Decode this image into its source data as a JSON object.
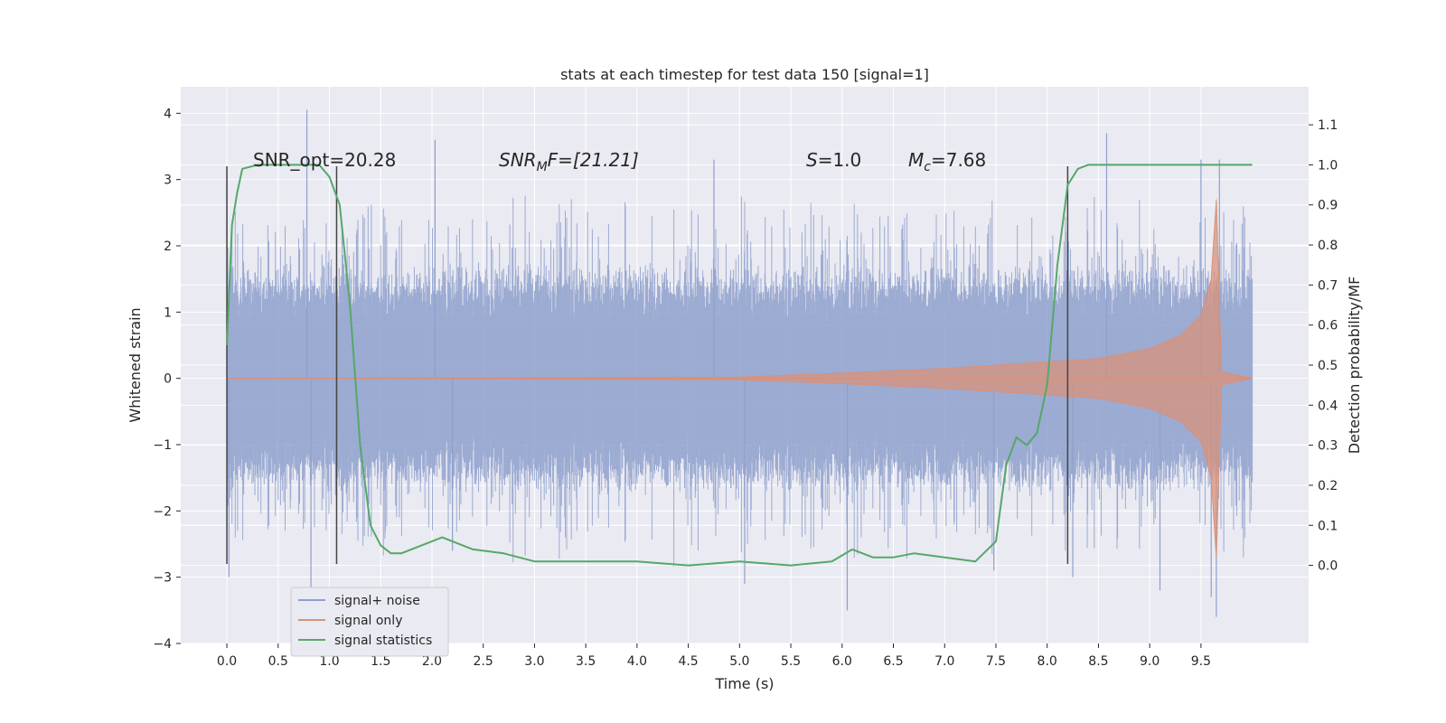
{
  "chart_data": {
    "type": "line",
    "title": "stats at each timestep for test data 150 [signal=1]",
    "xlabel": "Time (s)",
    "ylabel_left": "Whitened strain",
    "ylabel_right": "Detection probability/MF",
    "xlim": [
      -0.45,
      10.55
    ],
    "ylim_left": [
      -4,
      4.4
    ],
    "ylim_right": [
      -0.195,
      1.195
    ],
    "x_ticks": [
      "0.0",
      "0.5",
      "1.0",
      "1.5",
      "2.0",
      "2.5",
      "3.0",
      "3.5",
      "4.0",
      "4.5",
      "5.0",
      "5.5",
      "6.0",
      "6.5",
      "7.0",
      "7.5",
      "8.0",
      "8.5",
      "9.0",
      "9.5"
    ],
    "y_left_ticks": [
      "4",
      "3",
      "2",
      "1",
      "0",
      "−1",
      "−2",
      "−3",
      "−4"
    ],
    "y_right_ticks": [
      "1.1",
      "1.0",
      "0.9",
      "0.8",
      "0.7",
      "0.6",
      "0.5",
      "0.4",
      "0.3",
      "0.2",
      "0.1",
      "0.0"
    ],
    "grid": true,
    "legend_position": "lower-left",
    "series": [
      {
        "name": "signal+ noise",
        "axis": "left",
        "color": "#8ea0cc",
        "x_range": [
          0.0,
          10.0
        ],
        "typical_band": [
          -1.4,
          1.4
        ],
        "spikes": [
          [
            0.0,
            3.1
          ],
          [
            0.02,
            -3.0
          ],
          [
            0.78,
            4.05
          ],
          [
            0.82,
            -3.3
          ],
          [
            2.03,
            3.6
          ],
          [
            2.2,
            -2.6
          ],
          [
            4.75,
            3.3
          ],
          [
            5.05,
            -3.1
          ],
          [
            6.05,
            -3.5
          ],
          [
            7.48,
            -2.9
          ],
          [
            8.25,
            -3.0
          ],
          [
            8.58,
            3.7
          ],
          [
            9.1,
            -3.2
          ],
          [
            9.5,
            3.3
          ],
          [
            9.6,
            -3.3
          ],
          [
            9.65,
            -3.6
          ],
          [
            9.68,
            3.3
          ]
        ]
      },
      {
        "name": "signal only",
        "axis": "left",
        "color": "#d8917a",
        "points": [
          [
            0,
            0
          ],
          [
            5.0,
            0.02
          ],
          [
            6.0,
            0.08
          ],
          [
            7.0,
            0.15
          ],
          [
            8.0,
            0.25
          ],
          [
            8.5,
            0.3
          ],
          [
            9.0,
            0.45
          ],
          [
            9.3,
            0.65
          ],
          [
            9.5,
            0.95
          ],
          [
            9.6,
            1.5
          ],
          [
            9.65,
            2.7
          ],
          [
            9.7,
            0.1
          ],
          [
            10.0,
            0.0
          ]
        ]
      },
      {
        "name": "signal statistics",
        "axis": "right",
        "color": "#55a868",
        "points": [
          [
            0.0,
            0.55
          ],
          [
            0.05,
            0.85
          ],
          [
            0.1,
            0.93
          ],
          [
            0.15,
            0.99
          ],
          [
            0.3,
            1.0
          ],
          [
            0.5,
            1.0
          ],
          [
            0.7,
            1.0
          ],
          [
            0.9,
            1.0
          ],
          [
            1.0,
            0.97
          ],
          [
            1.1,
            0.9
          ],
          [
            1.2,
            0.65
          ],
          [
            1.3,
            0.3
          ],
          [
            1.4,
            0.1
          ],
          [
            1.5,
            0.05
          ],
          [
            1.6,
            0.03
          ],
          [
            1.7,
            0.03
          ],
          [
            1.9,
            0.05
          ],
          [
            2.1,
            0.07
          ],
          [
            2.4,
            0.04
          ],
          [
            2.7,
            0.03
          ],
          [
            3.0,
            0.01
          ],
          [
            3.5,
            0.01
          ],
          [
            4.0,
            0.01
          ],
          [
            4.5,
            0.0
          ],
          [
            5.0,
            0.01
          ],
          [
            5.5,
            0.0
          ],
          [
            5.9,
            0.01
          ],
          [
            6.1,
            0.04
          ],
          [
            6.3,
            0.02
          ],
          [
            6.5,
            0.02
          ],
          [
            6.7,
            0.03
          ],
          [
            7.0,
            0.02
          ],
          [
            7.3,
            0.01
          ],
          [
            7.5,
            0.06
          ],
          [
            7.6,
            0.25
          ],
          [
            7.7,
            0.32
          ],
          [
            7.8,
            0.3
          ],
          [
            7.9,
            0.33
          ],
          [
            8.0,
            0.45
          ],
          [
            8.1,
            0.75
          ],
          [
            8.2,
            0.95
          ],
          [
            8.3,
            0.99
          ],
          [
            8.4,
            1.0
          ],
          [
            9.0,
            1.0
          ],
          [
            10.0,
            1.0
          ]
        ]
      }
    ],
    "vertical_markers": [
      {
        "x": 0.0,
        "y_top": 3.2,
        "y_bottom": -2.8
      },
      {
        "x": 1.07,
        "y_top": 3.2,
        "y_bottom": -2.8
      },
      {
        "x": 8.2,
        "y_top": 3.2,
        "y_bottom": -2.8
      }
    ],
    "annotations": {
      "snr_opt": "SNR_opt=20.28",
      "snr_mf_base": "SNR",
      "snr_mf_sub": "M",
      "snr_mf_tail": "F=[21.21]",
      "s_var": "S",
      "s_val": "=1.0",
      "mc_base": "M",
      "mc_sub": "c",
      "mc_val": "=7.68"
    }
  }
}
